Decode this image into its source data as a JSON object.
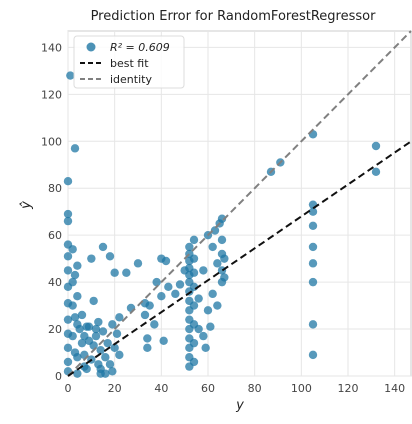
{
  "chart_data": {
    "type": "scatter",
    "title": "Prediction Error for RandomForestRegressor",
    "xlabel": "y",
    "ylabel": "ŷ",
    "xlim": [
      0,
      147
    ],
    "ylim": [
      0,
      147
    ],
    "xticks": [
      0,
      20,
      40,
      60,
      80,
      100,
      120,
      140
    ],
    "yticks": [
      0,
      20,
      40,
      60,
      80,
      100,
      120,
      140
    ],
    "grid": true,
    "legend_position": "top-left",
    "legend": {
      "r2_label": "R² = 0.609",
      "best_fit_label": "best fit",
      "identity_label": "identity"
    },
    "lines": {
      "best_fit": {
        "slope": 0.68,
        "intercept": 0,
        "color": "#111111",
        "style": "dashed"
      },
      "identity": {
        "slope": 1,
        "intercept": 0,
        "color": "#808080",
        "style": "dashed"
      }
    },
    "point_color": "#1f77a4",
    "points": [
      [
        0,
        83
      ],
      [
        0,
        69
      ],
      [
        0,
        66
      ],
      [
        0,
        56
      ],
      [
        0,
        51
      ],
      [
        0,
        45
      ],
      [
        0,
        38
      ],
      [
        0,
        31
      ],
      [
        0,
        24
      ],
      [
        0,
        18
      ],
      [
        0,
        12
      ],
      [
        0,
        6
      ],
      [
        0,
        2
      ],
      [
        1,
        128
      ],
      [
        2,
        54
      ],
      [
        2,
        40
      ],
      [
        2,
        30
      ],
      [
        2,
        17
      ],
      [
        3,
        43
      ],
      [
        3,
        25
      ],
      [
        3,
        10
      ],
      [
        3,
        97
      ],
      [
        4,
        47
      ],
      [
        4,
        34
      ],
      [
        4,
        22
      ],
      [
        4,
        8
      ],
      [
        5,
        20
      ],
      [
        6,
        26
      ],
      [
        6,
        14
      ],
      [
        7,
        9
      ],
      [
        7,
        4
      ],
      [
        8,
        21
      ],
      [
        8,
        3
      ],
      [
        9,
        15
      ],
      [
        10,
        7
      ],
      [
        11,
        13
      ],
      [
        12,
        17
      ],
      [
        13,
        5
      ],
      [
        14,
        11
      ],
      [
        14,
        3
      ],
      [
        15,
        19
      ],
      [
        16,
        8
      ],
      [
        17,
        14
      ],
      [
        18,
        5
      ],
      [
        19,
        22
      ],
      [
        19,
        2
      ],
      [
        20,
        44
      ],
      [
        20,
        12
      ],
      [
        21,
        18
      ],
      [
        22,
        9
      ],
      [
        22,
        25
      ],
      [
        10,
        50
      ],
      [
        12,
        20
      ],
      [
        15,
        55
      ],
      [
        18,
        51
      ],
      [
        13,
        23
      ],
      [
        11,
        32
      ],
      [
        7,
        17
      ],
      [
        9,
        21
      ],
      [
        14,
        1
      ],
      [
        16,
        1
      ],
      [
        4,
        1
      ],
      [
        25,
        44
      ],
      [
        27,
        29
      ],
      [
        30,
        48
      ],
      [
        33,
        26
      ],
      [
        33,
        31
      ],
      [
        34,
        16
      ],
      [
        34,
        12
      ],
      [
        35,
        30
      ],
      [
        37,
        22
      ],
      [
        38,
        40
      ],
      [
        40,
        50
      ],
      [
        40,
        34
      ],
      [
        41,
        15
      ],
      [
        42,
        49
      ],
      [
        43,
        38
      ],
      [
        46,
        35
      ],
      [
        48,
        39
      ],
      [
        50,
        45
      ],
      [
        52,
        55
      ],
      [
        52,
        52
      ],
      [
        52,
        49
      ],
      [
        52,
        46
      ],
      [
        52,
        43
      ],
      [
        52,
        40
      ],
      [
        52,
        36
      ],
      [
        52,
        32
      ],
      [
        52,
        28
      ],
      [
        52,
        24
      ],
      [
        52,
        20
      ],
      [
        52,
        16
      ],
      [
        52,
        12
      ],
      [
        52,
        8
      ],
      [
        52,
        4
      ],
      [
        54,
        58
      ],
      [
        54,
        50
      ],
      [
        54,
        44
      ],
      [
        54,
        38
      ],
      [
        54,
        30
      ],
      [
        54,
        22
      ],
      [
        54,
        14
      ],
      [
        54,
        6
      ],
      [
        56,
        33
      ],
      [
        56,
        20
      ],
      [
        58,
        45
      ],
      [
        58,
        17
      ],
      [
        59,
        12
      ],
      [
        60,
        60
      ],
      [
        60,
        28
      ],
      [
        61,
        21
      ],
      [
        62,
        55
      ],
      [
        62,
        35
      ],
      [
        63,
        62
      ],
      [
        64,
        48
      ],
      [
        64,
        30
      ],
      [
        65,
        65
      ],
      [
        66,
        58
      ],
      [
        66,
        52
      ],
      [
        66,
        45
      ],
      [
        66,
        40
      ],
      [
        66,
        67
      ],
      [
        67,
        50
      ],
      [
        67,
        42
      ],
      [
        87,
        87
      ],
      [
        91,
        91
      ],
      [
        105,
        103
      ],
      [
        105,
        73
      ],
      [
        105,
        70
      ],
      [
        105,
        64
      ],
      [
        105,
        55
      ],
      [
        105,
        48
      ],
      [
        105,
        40
      ],
      [
        105,
        22
      ],
      [
        105,
        9
      ],
      [
        132,
        98
      ],
      [
        132,
        87
      ]
    ]
  }
}
